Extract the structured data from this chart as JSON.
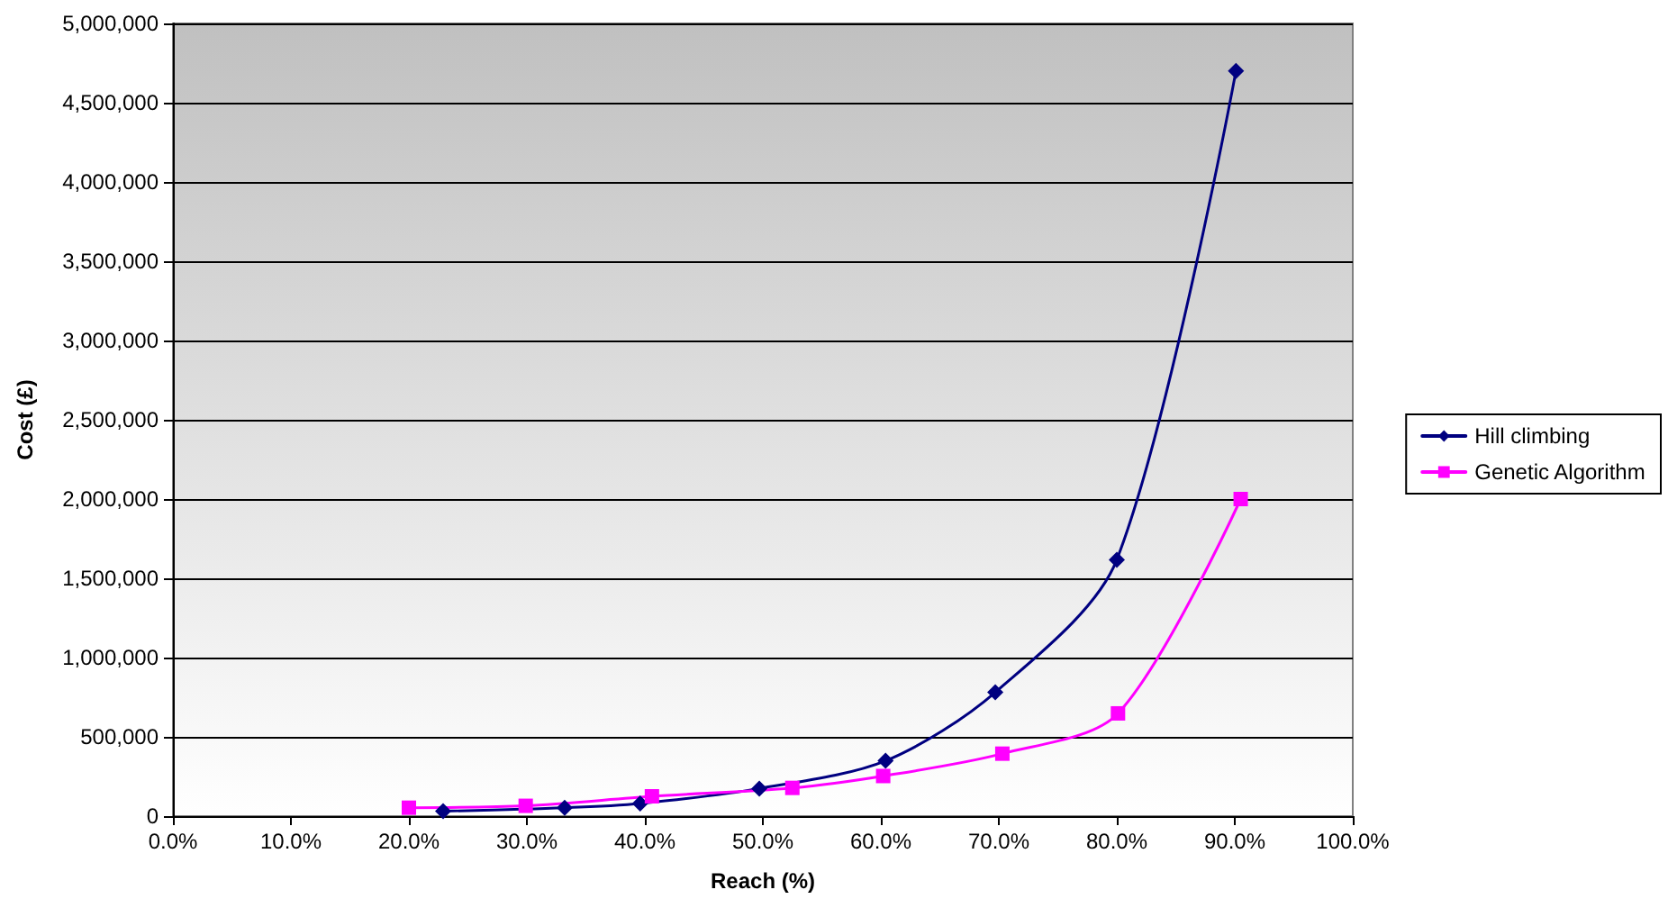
{
  "chart_data": {
    "type": "line",
    "xlabel": "Reach (%)",
    "ylabel": "Cost (£)",
    "series": [
      {
        "name": "Hill climbing",
        "color": "#000080",
        "marker": "diamond",
        "x": [
          22.9,
          33.2,
          39.6,
          49.7,
          60.4,
          69.7,
          80.0,
          90.1
        ],
        "values": [
          31000,
          53000,
          80000,
          174000,
          349000,
          781000,
          1617000,
          4700000
        ]
      },
      {
        "name": "Genetic Algorithm",
        "color": "#ff00ff",
        "marker": "square",
        "x": [
          20.0,
          29.9,
          40.6,
          52.5,
          60.2,
          70.3,
          80.1,
          90.5
        ],
        "values": [
          53000,
          65000,
          125000,
          178000,
          253000,
          394000,
          648000,
          2000000
        ]
      }
    ],
    "xlim": [
      0,
      100
    ],
    "xticks": [
      {
        "value": 0,
        "label": "0.0%"
      },
      {
        "value": 10,
        "label": "10.0%"
      },
      {
        "value": 20,
        "label": "20.0%"
      },
      {
        "value": 30,
        "label": "30.0%"
      },
      {
        "value": 40,
        "label": "40.0%"
      },
      {
        "value": 50,
        "label": "50.0%"
      },
      {
        "value": 60,
        "label": "60.0%"
      },
      {
        "value": 70,
        "label": "70.0%"
      },
      {
        "value": 80,
        "label": "80.0%"
      },
      {
        "value": 90,
        "label": "90.0%"
      },
      {
        "value": 100,
        "label": "100.0%"
      }
    ],
    "ylim": [
      0,
      5000000
    ],
    "yticks": [
      {
        "value": 0,
        "label": "0"
      },
      {
        "value": 500000,
        "label": "500,000"
      },
      {
        "value": 1000000,
        "label": "1,000,000"
      },
      {
        "value": 1500000,
        "label": "1,500,000"
      },
      {
        "value": 2000000,
        "label": "2,000,000"
      },
      {
        "value": 2500000,
        "label": "2,500,000"
      },
      {
        "value": 3000000,
        "label": "3,000,000"
      },
      {
        "value": 3500000,
        "label": "3,500,000"
      },
      {
        "value": 4000000,
        "label": "4,000,000"
      },
      {
        "value": 4500000,
        "label": "4,500,000"
      },
      {
        "value": 5000000,
        "label": "5,000,000"
      }
    ],
    "grid": "y",
    "legend": "right"
  }
}
